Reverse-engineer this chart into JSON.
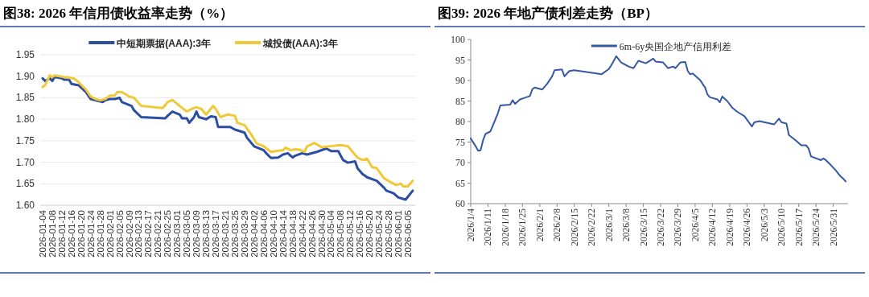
{
  "chart_data": [
    {
      "type": "line",
      "title": "图38: 2026 年信用债收益率走势（%）",
      "legend": "top",
      "grid": "y",
      "xlim": [
        "2026-01-03",
        "2026-06-08"
      ],
      "ylim": [
        1.6,
        1.95
      ],
      "yticks": [
        {
          "value": 1.6,
          "label": "1.60"
        },
        {
          "value": 1.65,
          "label": "1.65"
        },
        {
          "value": 1.7,
          "label": "1.70"
        },
        {
          "value": 1.75,
          "label": "1.75"
        },
        {
          "value": 1.8,
          "label": "1.80"
        },
        {
          "value": 1.85,
          "label": "1.85"
        },
        {
          "value": 1.9,
          "label": "1.90"
        },
        {
          "value": 1.95,
          "label": "1.95"
        }
      ],
      "xticks": [
        "2026-01-04",
        "2026-01-08",
        "2026-01-12",
        "2026-01-16",
        "2026-01-20",
        "2026-01-24",
        "2026-01-28",
        "2026-02-01",
        "2026-02-05",
        "2026-02-09",
        "2026-02-13",
        "2026-02-17",
        "2026-02-21",
        "2026-02-25",
        "2026-03-01",
        "2026-03-05",
        "2026-03-09",
        "2026-03-13",
        "2026-03-17",
        "2026-03-21",
        "2026-03-25",
        "2026-03-29",
        "2026-04-02",
        "2026-04-06",
        "2026-04-10",
        "2026-04-14",
        "2026-04-18",
        "2026-04-22",
        "2026-04-26",
        "2026-04-30",
        "2026-05-04",
        "2026-05-08",
        "2026-05-12",
        "2026-05-16",
        "2026-05-20",
        "2026-05-24",
        "2026-05-28",
        "2026-06-01",
        "2026-06-05"
      ],
      "series": [
        {
          "name": "中短期票据(AAA):3年",
          "color": "#2b4ea2",
          "x": [
            "2026-01-04",
            "2026-01-05",
            "2026-01-07",
            "2026-01-08",
            "2026-01-09",
            "2026-01-12",
            "2026-01-13",
            "2026-01-15",
            "2026-01-16",
            "2026-01-19",
            "2026-01-22",
            "2026-01-24",
            "2026-01-26",
            "2026-01-29",
            "2026-01-30",
            "2026-02-01",
            "2026-02-03",
            "2026-02-05",
            "2026-02-06",
            "2026-02-10",
            "2026-02-11",
            "2026-02-14",
            "2026-02-24",
            "2026-02-25",
            "2026-02-27",
            "2026-03-02",
            "2026-03-03",
            "2026-03-05",
            "2026-03-06",
            "2026-03-08",
            "2026-03-09",
            "2026-03-10",
            "2026-03-13",
            "2026-03-15",
            "2026-03-17",
            "2026-03-18",
            "2026-03-23",
            "2026-03-25",
            "2026-03-29",
            "2026-03-30",
            "2026-04-02",
            "2026-04-06",
            "2026-04-07",
            "2026-04-09",
            "2026-04-12",
            "2026-04-14",
            "2026-04-16",
            "2026-04-18",
            "2026-04-19",
            "2026-04-21",
            "2026-04-22",
            "2026-04-24",
            "2026-04-28",
            "2026-05-02",
            "2026-05-04",
            "2026-05-07",
            "2026-05-09",
            "2026-05-11",
            "2026-05-14",
            "2026-05-15",
            "2026-05-17",
            "2026-05-19",
            "2026-05-23",
            "2026-05-26",
            "2026-05-27",
            "2026-05-30",
            "2026-06-01",
            "2026-06-04",
            "2026-06-07"
          ],
          "values": [
            1.895,
            1.889,
            1.895,
            1.889,
            1.898,
            1.895,
            1.892,
            1.892,
            1.882,
            1.879,
            1.863,
            1.847,
            1.844,
            1.84,
            1.844,
            1.847,
            1.847,
            1.85,
            1.84,
            1.831,
            1.821,
            1.805,
            1.802,
            1.808,
            1.818,
            1.811,
            1.802,
            1.802,
            1.792,
            1.805,
            1.818,
            1.805,
            1.8,
            1.807,
            1.805,
            1.782,
            1.782,
            1.776,
            1.769,
            1.757,
            1.737,
            1.728,
            1.721,
            1.71,
            1.711,
            1.718,
            1.721,
            1.711,
            1.715,
            1.719,
            1.721,
            1.718,
            1.724,
            1.732,
            1.726,
            1.726,
            1.705,
            1.699,
            1.702,
            1.686,
            1.673,
            1.665,
            1.657,
            1.641,
            1.634,
            1.628,
            1.618,
            1.613,
            1.634
          ]
        },
        {
          "name": "城投债(AAA):3年",
          "color": "#f0c93a",
          "x": [
            "2026-01-04",
            "2026-01-05",
            "2026-01-07",
            "2026-01-08",
            "2026-01-09",
            "2026-01-13",
            "2026-01-17",
            "2026-01-19",
            "2026-01-22",
            "2026-01-24",
            "2026-01-26",
            "2026-01-28",
            "2026-01-30",
            "2026-02-01",
            "2026-02-03",
            "2026-02-04",
            "2026-02-06",
            "2026-02-09",
            "2026-02-11",
            "2026-02-14",
            "2026-02-23",
            "2026-02-25",
            "2026-02-27",
            "2026-03-02",
            "2026-03-05",
            "2026-03-07",
            "2026-03-09",
            "2026-03-11",
            "2026-03-13",
            "2026-03-16",
            "2026-03-17",
            "2026-03-19",
            "2026-03-22",
            "2026-03-25",
            "2026-03-26",
            "2026-03-29",
            "2026-04-01",
            "2026-04-03",
            "2026-04-06",
            "2026-04-09",
            "2026-04-11",
            "2026-04-14",
            "2026-04-15",
            "2026-04-17",
            "2026-04-19",
            "2026-04-21",
            "2026-04-23",
            "2026-04-24",
            "2026-04-27",
            "2026-04-30",
            "2026-05-08",
            "2026-05-11",
            "2026-05-15",
            "2026-05-17",
            "2026-05-19",
            "2026-05-21",
            "2026-05-23",
            "2026-05-26",
            "2026-05-29",
            "2026-05-31",
            "2026-06-02",
            "2026-06-03",
            "2026-06-05",
            "2026-06-07"
          ],
          "values": [
            1.875,
            1.879,
            1.902,
            1.898,
            1.902,
            1.898,
            1.895,
            1.886,
            1.869,
            1.853,
            1.847,
            1.844,
            1.847,
            1.855,
            1.855,
            1.863,
            1.863,
            1.853,
            1.85,
            1.831,
            1.826,
            1.84,
            1.845,
            1.831,
            1.818,
            1.824,
            1.828,
            1.824,
            1.811,
            1.831,
            1.824,
            1.805,
            1.811,
            1.808,
            1.792,
            1.786,
            1.763,
            1.744,
            1.737,
            1.724,
            1.726,
            1.728,
            1.734,
            1.728,
            1.73,
            1.729,
            1.724,
            1.737,
            1.745,
            1.735,
            1.74,
            1.737,
            1.711,
            1.705,
            1.708,
            1.689,
            1.686,
            1.663,
            1.653,
            1.647,
            1.65,
            1.644,
            1.644,
            1.657
          ]
        }
      ]
    },
    {
      "type": "line",
      "title": "图39: 2026 年地产债利差走势（BP）",
      "legend": "top",
      "xlim": [
        "2026-01-04",
        "2026-06-06"
      ],
      "ylim": [
        60,
        100
      ],
      "yticks": [
        60,
        65,
        70,
        75,
        80,
        85,
        90,
        95,
        100
      ],
      "xticks": [
        {
          "value": "2026-01-04",
          "label": "2026/1/4"
        },
        {
          "value": "2026-01-11",
          "label": "2026/1/11"
        },
        {
          "value": "2026-01-18",
          "label": "2026/1/18"
        },
        {
          "value": "2026-01-25",
          "label": "2026/1/25"
        },
        {
          "value": "2026-02-01",
          "label": "2026/2/1"
        },
        {
          "value": "2026-02-08",
          "label": "2026/2/8"
        },
        {
          "value": "2026-02-15",
          "label": "2026/2/15"
        },
        {
          "value": "2026-02-22",
          "label": "2026/2/22"
        },
        {
          "value": "2026-03-01",
          "label": "2026/3/1"
        },
        {
          "value": "2026-03-08",
          "label": "2026/3/8"
        },
        {
          "value": "2026-03-15",
          "label": "2026/3/15"
        },
        {
          "value": "2026-03-22",
          "label": "2026/3/22"
        },
        {
          "value": "2026-03-29",
          "label": "2026/3/29"
        },
        {
          "value": "2026-04-05",
          "label": "2026/4/5"
        },
        {
          "value": "2026-04-12",
          "label": "2026/4/12"
        },
        {
          "value": "2026-04-19",
          "label": "2026/4/19"
        },
        {
          "value": "2026-04-26",
          "label": "2026/4/26"
        },
        {
          "value": "2026-05-03",
          "label": "2026/5/3"
        },
        {
          "value": "2026-05-10",
          "label": "2026/5/10"
        },
        {
          "value": "2026-05-17",
          "label": "2026/5/17"
        },
        {
          "value": "2026-05-24",
          "label": "2026/5/24"
        },
        {
          "value": "2026-05-31",
          "label": "2026/5/31"
        }
      ],
      "series": [
        {
          "name": "6m-6y央国企地产信用利差",
          "color": "#3457a6",
          "x": [
            "2026-01-04",
            "2026-01-06",
            "2026-01-07",
            "2026-01-08",
            "2026-01-09",
            "2026-01-10",
            "2026-01-12",
            "2026-01-14",
            "2026-01-15",
            "2026-01-16",
            "2026-01-20",
            "2026-01-21",
            "2026-01-22",
            "2026-01-24",
            "2026-01-26",
            "2026-01-28",
            "2026-01-29",
            "2026-01-30",
            "2026-02-02",
            "2026-02-04",
            "2026-02-06",
            "2026-02-07",
            "2026-02-10",
            "2026-02-11",
            "2026-02-13",
            "2026-02-15",
            "2026-02-24",
            "2026-02-26",
            "2026-03-01",
            "2026-03-02",
            "2026-03-04",
            "2026-03-06",
            "2026-03-09",
            "2026-03-11",
            "2026-03-13",
            "2026-03-16",
            "2026-03-19",
            "2026-03-20",
            "2026-03-23",
            "2026-03-25",
            "2026-03-27",
            "2026-03-28",
            "2026-03-30",
            "2026-04-01",
            "2026-04-02",
            "2026-04-03",
            "2026-04-04",
            "2026-04-07",
            "2026-04-09",
            "2026-04-10",
            "2026-04-11",
            "2026-04-14",
            "2026-04-15",
            "2026-04-16",
            "2026-04-18",
            "2026-04-20",
            "2026-04-22",
            "2026-04-25",
            "2026-04-28",
            "2026-04-29",
            "2026-05-01",
            "2026-05-07",
            "2026-05-09",
            "2026-05-10",
            "2026-05-12",
            "2026-05-13",
            "2026-05-16",
            "2026-05-18",
            "2026-05-20",
            "2026-05-21",
            "2026-05-22",
            "2026-05-26",
            "2026-05-27",
            "2026-05-28",
            "2026-05-29",
            "2026-05-30",
            "2026-06-01",
            "2026-06-03",
            "2026-06-04",
            "2026-06-05"
          ],
          "values": [
            75.9,
            74.0,
            72.9,
            73.0,
            75.4,
            77.0,
            77.6,
            80.5,
            82.0,
            83.9,
            84.1,
            85.2,
            84.3,
            85.4,
            85.8,
            86.2,
            87.9,
            88.3,
            87.8,
            89.2,
            91.0,
            92.5,
            92.7,
            91.0,
            92.3,
            92.5,
            91.7,
            91.5,
            92.8,
            93.7,
            95.9,
            94.4,
            93.4,
            93.0,
            94.8,
            94.2,
            95.3,
            94.6,
            94.4,
            93.0,
            93.4,
            93.0,
            94.4,
            94.5,
            92.3,
            91.5,
            91.7,
            90.1,
            88.3,
            86.6,
            85.9,
            85.4,
            84.7,
            86.1,
            85.0,
            83.4,
            82.4,
            81.3,
            78.8,
            79.8,
            80.1,
            79.3,
            80.7,
            79.8,
            79.5,
            76.7,
            75.3,
            74.2,
            74.2,
            73.4,
            71.5,
            70.6,
            71.0,
            70.6,
            70.0,
            69.4,
            68.1,
            66.6,
            66.1,
            65.4
          ]
        }
      ]
    }
  ]
}
